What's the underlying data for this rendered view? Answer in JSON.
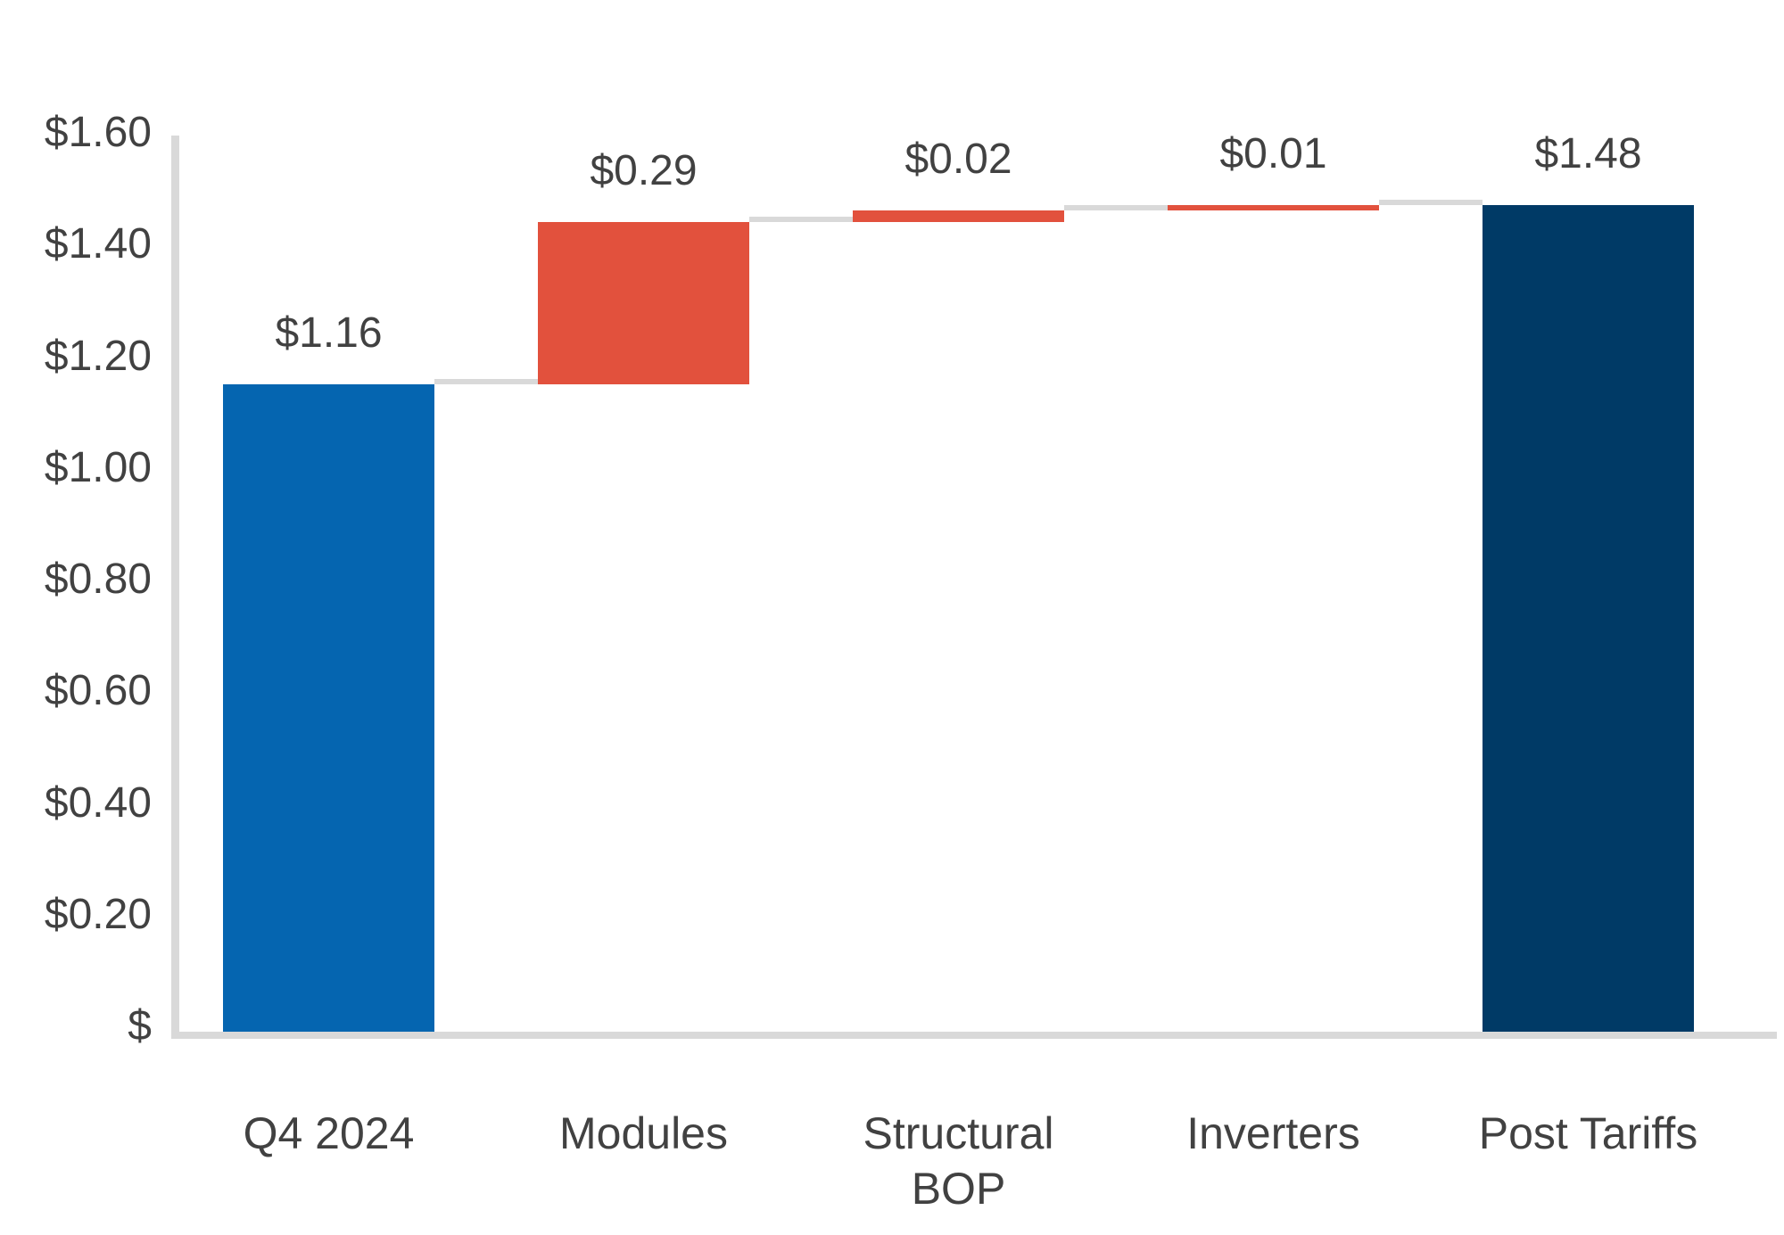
{
  "chart_data": {
    "type": "bar",
    "subtype": "waterfall",
    "title": "",
    "categories": [
      "Q4 2024",
      "Modules",
      "Structural BOP",
      "Inverters",
      "Post Tariffs"
    ],
    "bars": [
      {
        "category": "Q4 2024",
        "category_lines": [
          "Q4 2024"
        ],
        "start": 0,
        "end": 1.16,
        "value": 1.16,
        "value_label": "$1.16",
        "role": "base"
      },
      {
        "category": "Modules",
        "category_lines": [
          "Modules"
        ],
        "start": 1.16,
        "end": 1.45,
        "value": 0.29,
        "value_label": "$0.29",
        "role": "increase"
      },
      {
        "category": "Structural BOP",
        "category_lines": [
          "Structural",
          "BOP"
        ],
        "start": 1.45,
        "end": 1.47,
        "value": 0.02,
        "value_label": "$0.02",
        "role": "increase"
      },
      {
        "category": "Inverters",
        "category_lines": [
          "Inverters"
        ],
        "start": 1.47,
        "end": 1.48,
        "value": 0.01,
        "value_label": "$0.01",
        "role": "increase"
      },
      {
        "category": "Post Tariffs",
        "category_lines": [
          "Post Tariffs"
        ],
        "start": 0,
        "end": 1.48,
        "value": 1.48,
        "value_label": "$1.48",
        "role": "total"
      }
    ],
    "y_axis": {
      "min": 0,
      "max": 1.6,
      "tick_step": 0.2,
      "tick_labels_top_to_bottom": [
        "$1.60",
        "$1.40",
        "$1.20",
        "$1.00",
        "$0.80",
        "$0.60",
        "$0.40",
        "$0.20",
        "$"
      ]
    },
    "xlabel": "",
    "ylabel": "",
    "grid": "off",
    "legend": "none",
    "connectors": true,
    "colors": {
      "base": "#0565B0",
      "increase": "#E2513D",
      "total": "#003A66",
      "connector": "#D9D9D9",
      "axis": "#D9D9D9",
      "text": "#414141",
      "background": "#FFFFFF"
    }
  }
}
